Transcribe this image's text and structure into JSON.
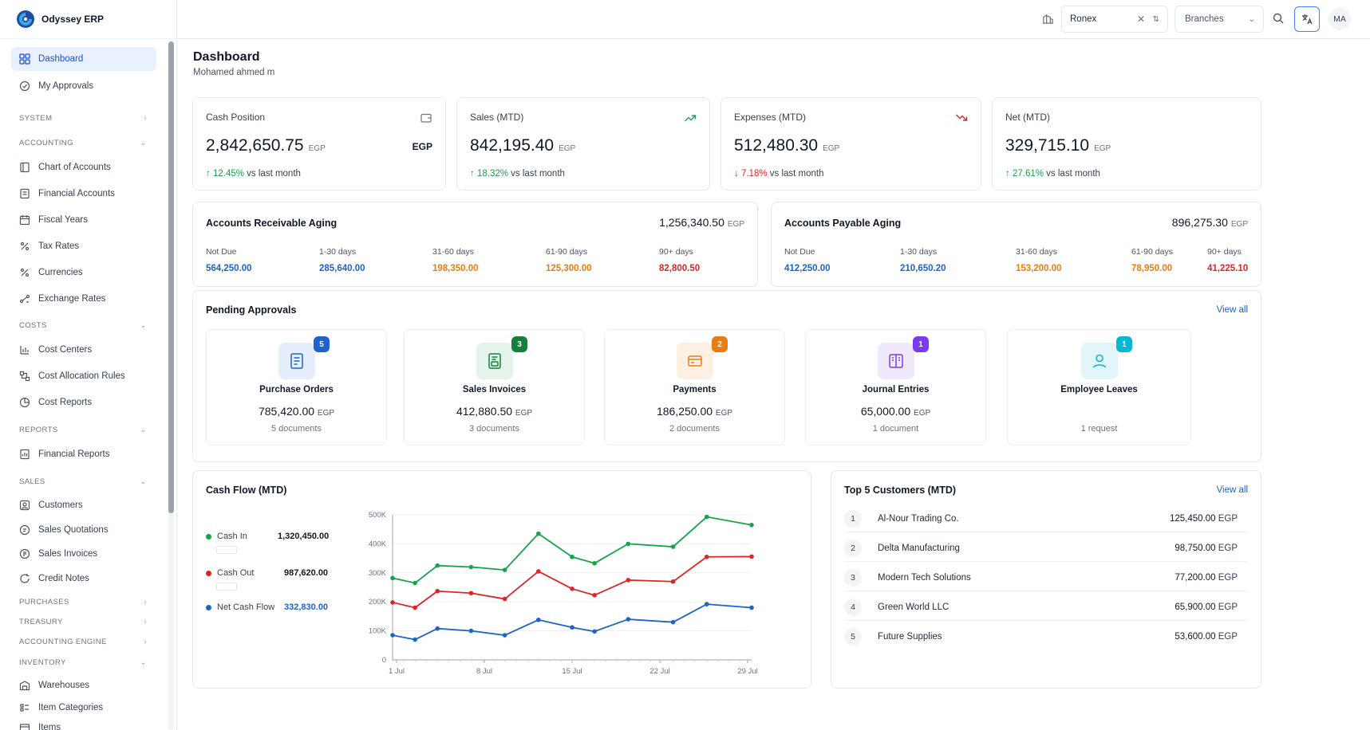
{
  "app": {
    "name": "Odyssey ERP"
  },
  "sidebar": {
    "items": [
      {
        "label": "Dashboard"
      },
      {
        "label": "My Approvals"
      }
    ],
    "sections": [
      {
        "label": "SYSTEM"
      },
      {
        "label": "ACCOUNTING"
      },
      {
        "label": "COSTS"
      },
      {
        "label": "REPORTS"
      },
      {
        "label": "SALES"
      },
      {
        "label": "PURCHASES"
      },
      {
        "label": "TREASURY"
      },
      {
        "label": "ACCOUNTING ENGINE"
      },
      {
        "label": "INVENTORY"
      }
    ],
    "accounting": [
      {
        "label": "Chart of Accounts"
      },
      {
        "label": "Financial Accounts"
      },
      {
        "label": "Fiscal Years"
      },
      {
        "label": "Tax Rates"
      },
      {
        "label": "Currencies"
      },
      {
        "label": "Exchange Rates"
      }
    ],
    "costs": [
      {
        "label": "Cost Centers"
      },
      {
        "label": "Cost Allocation Rules"
      },
      {
        "label": "Cost Reports"
      }
    ],
    "reports": [
      {
        "label": "Financial Reports"
      }
    ],
    "sales": [
      {
        "label": "Customers"
      },
      {
        "label": "Sales Quotations"
      },
      {
        "label": "Sales Invoices"
      },
      {
        "label": "Credit Notes"
      }
    ],
    "inventory": [
      {
        "label": "Warehouses"
      },
      {
        "label": "Item Categories"
      },
      {
        "label": "Items"
      }
    ]
  },
  "topbar": {
    "company": "Ronex",
    "branch_placeholder": "Branches",
    "avatar_initials": "MA"
  },
  "page": {
    "title": "Dashboard",
    "subtitle": "Mohamed ahmed m"
  },
  "kpis": [
    {
      "label": "Cash Position",
      "value": "2,842,650.75",
      "currency": "EGP",
      "right_currency": "EGP",
      "change": "12.45%",
      "arrow": "↑",
      "suffix": "vs last month",
      "direction": "up"
    },
    {
      "label": "Sales (MTD)",
      "value": "842,195.40",
      "currency": "EGP",
      "change": "18.32%",
      "arrow": "↑",
      "suffix": "vs last month",
      "direction": "up"
    },
    {
      "label": "Expenses (MTD)",
      "value": "512,480.30",
      "currency": "EGP",
      "change": "7.18%",
      "arrow": "↓",
      "suffix": "vs last month",
      "direction": "down"
    },
    {
      "label": "Net (MTD)",
      "value": "329,715.10",
      "currency": "EGP",
      "change": "27.61%",
      "arrow": "↑",
      "suffix": "vs last month",
      "direction": "up"
    }
  ],
  "ar_aging": {
    "title": "Accounts Receivable Aging",
    "total": "1,256,340.50",
    "currency": "EGP",
    "buckets": [
      {
        "label": "Not Due",
        "value": "564,250.00"
      },
      {
        "label": "1-30 days",
        "value": "285,640.00"
      },
      {
        "label": "31-60 days",
        "value": "198,350.00"
      },
      {
        "label": "61-90 days",
        "value": "125,300.00"
      },
      {
        "label": "90+ days",
        "value": "82,800.50"
      }
    ]
  },
  "ap_aging": {
    "title": "Accounts Payable Aging",
    "total": "896,275.30",
    "currency": "EGP",
    "buckets": [
      {
        "label": "Not Due",
        "value": "412,250.00"
      },
      {
        "label": "1-30 days",
        "value": "210,650.20"
      },
      {
        "label": "31-60 days",
        "value": "153,200.00"
      },
      {
        "label": "61-90 days",
        "value": "78,950.00"
      },
      {
        "label": "90+ days",
        "value": "41,225.10"
      }
    ]
  },
  "pending": {
    "title": "Pending Approvals",
    "view_all": "View all",
    "items": [
      {
        "name": "Purchase Orders",
        "amount": "785,420.00",
        "currency": "EGP",
        "docs": "5 documents",
        "badge": "5",
        "color": "#1d63c9",
        "icon": "document-icon"
      },
      {
        "name": "Sales Invoices",
        "amount": "412,880.50",
        "currency": "EGP",
        "docs": "3 documents",
        "badge": "3",
        "color": "#15803d",
        "icon": "invoice-icon"
      },
      {
        "name": "Payments",
        "amount": "186,250.00",
        "currency": "EGP",
        "docs": "2 documents",
        "badge": "2",
        "color": "#ea7c12",
        "icon": "payment-card-icon"
      },
      {
        "name": "Journal Entries",
        "amount": "65,000.00",
        "currency": "EGP",
        "docs": "1 document",
        "badge": "1",
        "color": "#7c3aed",
        "icon": "journal-icon"
      },
      {
        "name": "Employee Leaves",
        "amount": "",
        "currency": "",
        "docs": "1 request",
        "badge": "1",
        "color": "#06b6d4",
        "icon": "user-icon"
      }
    ]
  },
  "cashflow": {
    "title": "Cash Flow (MTD)",
    "legend": [
      {
        "name": "Cash In",
        "value": "1,320,450.00",
        "color": "#16a34a"
      },
      {
        "name": "Cash Out",
        "value": "987,620.00",
        "color": "#dc2626"
      },
      {
        "name": "Net Cash Flow",
        "value": "332,830.00",
        "color": "#1d63c9"
      }
    ]
  },
  "chart_data": {
    "type": "line",
    "x_ticks": [
      "1 Jul",
      "8 Jul",
      "15 Jul",
      "22 Jul",
      "29 Jul"
    ],
    "y_ticks": [
      "0",
      "100K",
      "200K",
      "300K",
      "400K",
      "500K"
    ],
    "ylim": [
      0,
      500000
    ],
    "x_days": [
      1,
      3,
      5,
      8,
      11,
      14,
      17,
      19,
      22,
      26,
      29,
      33
    ],
    "xlim": [
      1,
      33
    ],
    "series": [
      {
        "name": "Cash In",
        "color": "#16a34a",
        "values": [
          282000,
          265000,
          325000,
          320000,
          310000,
          435000,
          355000,
          333000,
          400000,
          390000,
          493000,
          465000
        ]
      },
      {
        "name": "Cash Out",
        "color": "#dc2626",
        "values": [
          198000,
          180000,
          237000,
          230000,
          210000,
          305000,
          245000,
          223000,
          275000,
          270000,
          355000,
          356000
        ]
      },
      {
        "name": "Net Cash Flow",
        "color": "#1d63c9",
        "values": [
          85000,
          70000,
          108000,
          100000,
          85000,
          138000,
          112000,
          98000,
          140000,
          130000,
          192000,
          180000
        ]
      }
    ],
    "grid": "horizontal"
  },
  "top_customers": {
    "title": "Top 5 Customers (MTD)",
    "view_all": "View all",
    "rows": [
      {
        "rank": "1",
        "name": "Al-Nour Trading Co.",
        "amount": "125,450.00",
        "currency": "EGP"
      },
      {
        "rank": "2",
        "name": "Delta Manufacturing",
        "amount": "98,750.00",
        "currency": "EGP"
      },
      {
        "rank": "3",
        "name": "Modern Tech Solutions",
        "amount": "77,200.00",
        "currency": "EGP"
      },
      {
        "rank": "4",
        "name": "Green World LLC",
        "amount": "65,900.00",
        "currency": "EGP"
      },
      {
        "rank": "5",
        "name": "Future Supplies",
        "amount": "53,600.00",
        "currency": "EGP"
      }
    ]
  }
}
